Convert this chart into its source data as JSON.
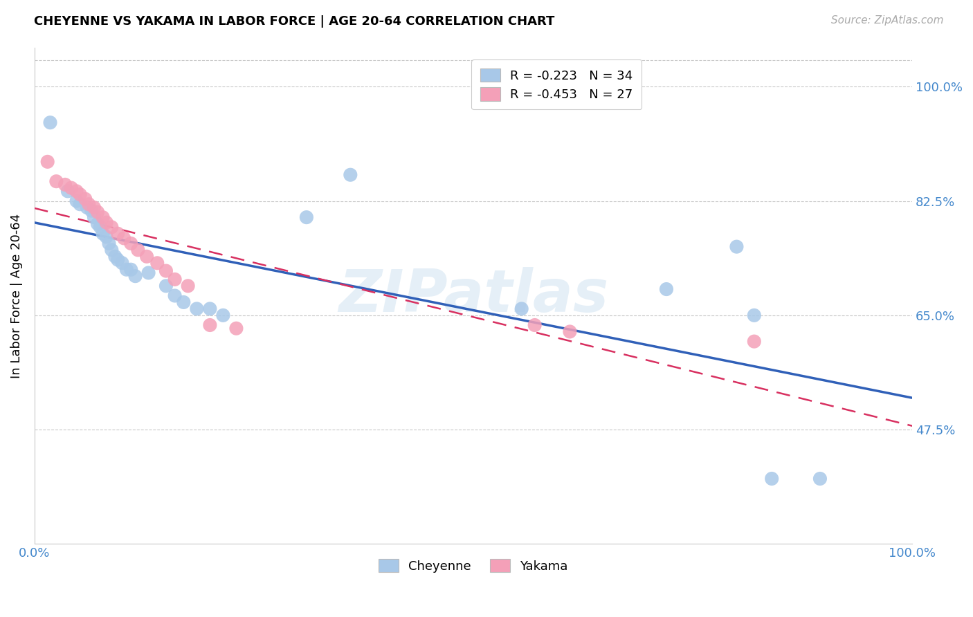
{
  "title": "CHEYENNE VS YAKAMA IN LABOR FORCE | AGE 20-64 CORRELATION CHART",
  "source": "Source: ZipAtlas.com",
  "ylabel": "In Labor Force | Age 20-64",
  "xlim": [
    0.0,
    1.0
  ],
  "ylim": [
    0.3,
    1.06
  ],
  "yticks": [
    0.475,
    0.65,
    0.825,
    1.0
  ],
  "ytick_labels": [
    "47.5%",
    "65.0%",
    "82.5%",
    "100.0%"
  ],
  "xtick_vals": [
    0.0,
    0.25,
    0.5,
    0.75,
    1.0
  ],
  "xtick_labels": [
    "0.0%",
    "",
    "",
    "",
    "100.0%"
  ],
  "watermark": "ZIPatlas",
  "cheyenne_R": "-0.223",
  "cheyenne_N": "34",
  "yakama_R": "-0.453",
  "yakama_N": "27",
  "cheyenne_color": "#a8c8e8",
  "yakama_color": "#f4a0b8",
  "cheyenne_line_color": "#3060b8",
  "yakama_line_color": "#d83060",
  "cheyenne_scatter": [
    [
      0.018,
      0.945
    ],
    [
      0.038,
      0.84
    ],
    [
      0.048,
      0.825
    ],
    [
      0.052,
      0.82
    ],
    [
      0.06,
      0.815
    ],
    [
      0.065,
      0.81
    ],
    [
      0.068,
      0.8
    ],
    [
      0.072,
      0.79
    ],
    [
      0.075,
      0.785
    ],
    [
      0.078,
      0.775
    ],
    [
      0.082,
      0.77
    ],
    [
      0.085,
      0.76
    ],
    [
      0.088,
      0.75
    ],
    [
      0.092,
      0.74
    ],
    [
      0.095,
      0.735
    ],
    [
      0.1,
      0.73
    ],
    [
      0.105,
      0.72
    ],
    [
      0.11,
      0.72
    ],
    [
      0.115,
      0.71
    ],
    [
      0.13,
      0.715
    ],
    [
      0.15,
      0.695
    ],
    [
      0.16,
      0.68
    ],
    [
      0.17,
      0.67
    ],
    [
      0.185,
      0.66
    ],
    [
      0.2,
      0.66
    ],
    [
      0.215,
      0.65
    ],
    [
      0.31,
      0.8
    ],
    [
      0.36,
      0.865
    ],
    [
      0.555,
      0.66
    ],
    [
      0.72,
      0.69
    ],
    [
      0.8,
      0.755
    ],
    [
      0.82,
      0.65
    ],
    [
      0.84,
      0.4
    ],
    [
      0.895,
      0.4
    ]
  ],
  "yakama_scatter": [
    [
      0.015,
      0.885
    ],
    [
      0.025,
      0.855
    ],
    [
      0.035,
      0.85
    ],
    [
      0.042,
      0.845
    ],
    [
      0.048,
      0.84
    ],
    [
      0.052,
      0.835
    ],
    [
      0.058,
      0.828
    ],
    [
      0.062,
      0.82
    ],
    [
      0.068,
      0.815
    ],
    [
      0.072,
      0.808
    ],
    [
      0.078,
      0.8
    ],
    [
      0.082,
      0.792
    ],
    [
      0.088,
      0.785
    ],
    [
      0.095,
      0.775
    ],
    [
      0.102,
      0.768
    ],
    [
      0.11,
      0.76
    ],
    [
      0.118,
      0.75
    ],
    [
      0.128,
      0.74
    ],
    [
      0.14,
      0.73
    ],
    [
      0.15,
      0.718
    ],
    [
      0.16,
      0.705
    ],
    [
      0.175,
      0.695
    ],
    [
      0.2,
      0.635
    ],
    [
      0.23,
      0.63
    ],
    [
      0.57,
      0.635
    ],
    [
      0.61,
      0.625
    ],
    [
      0.82,
      0.61
    ]
  ]
}
